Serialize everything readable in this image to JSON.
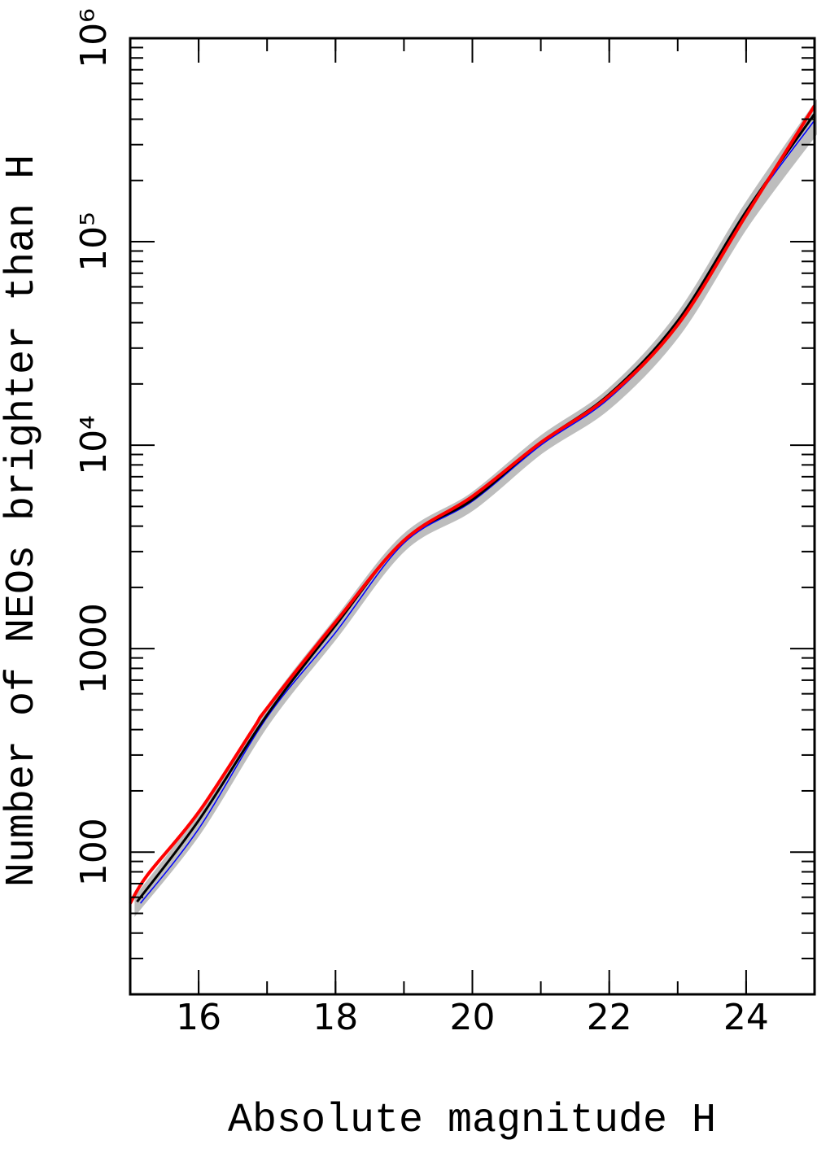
{
  "chart_data": {
    "type": "line",
    "xlabel": "Absolute magnitude H",
    "ylabel": "Number of NEOs brighter than H",
    "xlim": [
      15,
      25
    ],
    "ylim": [
      20,
      1000000
    ],
    "ylog": true,
    "xticks": [
      16,
      18,
      20,
      22,
      24
    ],
    "yticks": [
      100,
      1000,
      {
        "value": 10000,
        "label": "10⁴"
      },
      {
        "value": 100000,
        "label": "10⁵"
      },
      {
        "value": 1000000,
        "label": "10⁶"
      }
    ],
    "band": {
      "color": "#bdbdbd",
      "x": [
        15.1,
        16,
        17,
        18,
        19,
        20,
        21,
        22,
        23,
        24,
        25
      ],
      "lower": [
        52,
        125,
        430,
        1150,
        3100,
        4900,
        9300,
        15500,
        35000,
        120000,
        340000
      ],
      "upper": [
        60,
        150,
        500,
        1360,
        3550,
        5700,
        10800,
        18500,
        43000,
        150000,
        460000
      ]
    },
    "series": [
      {
        "color": "#0000ff",
        "x": [
          15.15,
          16,
          17,
          18,
          19,
          20,
          21,
          22,
          23,
          24,
          25
        ],
        "values": [
          56,
          130,
          460,
          1200,
          3300,
          5300,
          10000,
          17000,
          39000,
          138000,
          395000
        ]
      },
      {
        "color": "#000000",
        "x": [
          15.1,
          16,
          17,
          18,
          19,
          20,
          21,
          22,
          23,
          24,
          25
        ],
        "values": [
          57,
          143,
          473,
          1300,
          3410,
          5400,
          10300,
          17800,
          40800,
          141000,
          425000
        ]
      },
      {
        "color": "#ff0000",
        "x": [
          15,
          15.25,
          16,
          16.8,
          17,
          18,
          19,
          20,
          21,
          22,
          23,
          24,
          25
        ],
        "values": [
          56,
          77,
          157,
          405,
          510,
          1350,
          3400,
          5600,
          10300,
          17500,
          39000,
          135000,
          466000
        ]
      }
    ]
  }
}
